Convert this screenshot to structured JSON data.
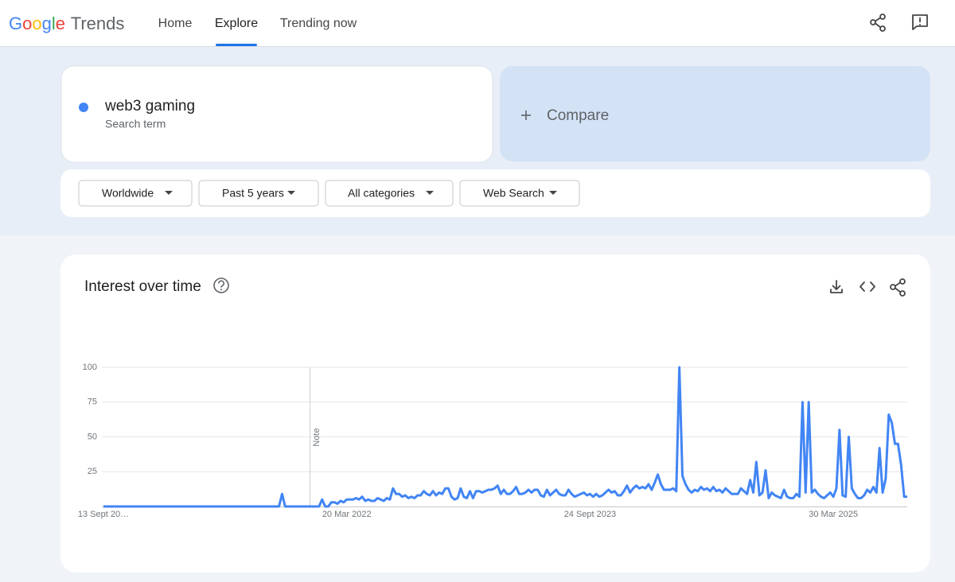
{
  "header": {
    "logo_letters": [
      "G",
      "o",
      "o",
      "g",
      "l",
      "e"
    ],
    "logo_product": "Trends",
    "nav": [
      "Home",
      "Explore",
      "Trending now"
    ]
  },
  "search": {
    "sublabel": "Search term",
    "compare": "Compare"
  },
  "filters": [
    "Worldwide",
    "Past 5 years",
    "All categories",
    "Web Search"
  ],
  "chart_data": {
    "type": "line",
    "title": "Interest over time",
    "annotation": "Note",
    "categories": [
      "13 Sept 20…",
      null,
      null,
      null,
      null,
      null,
      null,
      null,
      null,
      null,
      null,
      null,
      null,
      null,
      null,
      null,
      null,
      null,
      null,
      null,
      null,
      null,
      null,
      null,
      null,
      null,
      null,
      null,
      null,
      null,
      null,
      null,
      null,
      null,
      null,
      null,
      null,
      null,
      null,
      null,
      null,
      null,
      null,
      null,
      null,
      null,
      null,
      null,
      null,
      null,
      null,
      null,
      null,
      null,
      null,
      null,
      null,
      null,
      null,
      null,
      null,
      null,
      null,
      null,
      null,
      null,
      null,
      null,
      null,
      null,
      null,
      null,
      null,
      null,
      null,
      null,
      null,
      null,
      null,
      "20 Mar 2022",
      null,
      null,
      null,
      null,
      null,
      null,
      null,
      null,
      null,
      null,
      null,
      null,
      null,
      null,
      null,
      null,
      null,
      null,
      null,
      null,
      null,
      null,
      null,
      null,
      null,
      null,
      null,
      null,
      null,
      null,
      null,
      null,
      null,
      null,
      null,
      null,
      null,
      null,
      null,
      null,
      null,
      null,
      null,
      null,
      null,
      null,
      null,
      null,
      null,
      null,
      null,
      null,
      null,
      null,
      null,
      null,
      null,
      null,
      null,
      null,
      null,
      null,
      null,
      null,
      null,
      null,
      null,
      null,
      null,
      null,
      null,
      null,
      null,
      null,
      null,
      null,
      null,
      null,
      "24 Sept 2023",
      null,
      null,
      null,
      null,
      null,
      null,
      null,
      null,
      null,
      null,
      null,
      null,
      null,
      null,
      null,
      null,
      null,
      null,
      null,
      null,
      null,
      null,
      null,
      null,
      null,
      null,
      null,
      null,
      null,
      null,
      null,
      null,
      null,
      null,
      null,
      null,
      null,
      null,
      null,
      null,
      null,
      null,
      null,
      null,
      null,
      null,
      null,
      null,
      null,
      null,
      null,
      null,
      null,
      null,
      null,
      null,
      null,
      null,
      null,
      null,
      null,
      null,
      null,
      null,
      null,
      null,
      null,
      null,
      null,
      null,
      null,
      null,
      null,
      null,
      null,
      null,
      null,
      null,
      "30 Mar 2025",
      null,
      null,
      null,
      null,
      null,
      null,
      null,
      null,
      null,
      null,
      null,
      null,
      null,
      null,
      null,
      null,
      null,
      null,
      null,
      null,
      null,
      null,
      null,
      null
    ],
    "series": [
      {
        "name": "web3 gaming",
        "color": "#4285f4",
        "values": [
          0,
          0,
          0,
          0,
          0,
          0,
          0,
          0,
          0,
          0,
          0,
          0,
          0,
          0,
          0,
          0,
          0,
          0,
          0,
          0,
          0,
          0,
          0,
          0,
          0,
          0,
          0,
          0,
          0,
          0,
          0,
          0,
          0,
          0,
          0,
          0,
          0,
          0,
          0,
          0,
          0,
          0,
          0,
          0,
          0,
          0,
          0,
          0,
          0,
          0,
          0,
          0,
          0,
          0,
          0,
          0,
          0,
          0,
          9,
          0,
          0,
          0,
          0,
          0,
          0,
          0,
          0,
          0,
          0,
          0,
          0,
          5,
          0,
          0,
          3,
          3,
          2,
          4,
          3,
          5,
          5,
          5,
          6,
          5,
          7,
          4,
          5,
          4,
          4,
          6,
          5,
          4,
          6,
          5,
          13,
          9,
          9,
          7,
          8,
          6,
          7,
          6,
          8,
          8,
          11,
          9,
          8,
          11,
          8,
          10,
          9,
          13,
          13,
          7,
          5,
          6,
          13,
          7,
          6,
          11,
          6,
          11,
          11,
          10,
          11,
          12,
          12,
          13,
          15,
          9,
          12,
          9,
          9,
          11,
          14,
          9,
          9,
          10,
          12,
          10,
          12,
          12,
          8,
          7,
          12,
          8,
          10,
          12,
          9,
          8,
          8,
          12,
          9,
          7,
          8,
          9,
          10,
          8,
          9,
          7,
          9,
          7,
          8,
          10,
          12,
          10,
          11,
          8,
          8,
          11,
          15,
          10,
          13,
          15,
          13,
          14,
          13,
          16,
          12,
          17,
          23,
          16,
          12,
          12,
          12,
          13,
          11,
          100,
          22,
          16,
          12,
          10,
          12,
          11,
          14,
          12,
          13,
          11,
          14,
          11,
          12,
          10,
          13,
          11,
          9,
          9,
          9,
          13,
          11,
          9,
          19,
          10,
          32,
          8,
          10,
          26,
          6,
          10,
          8,
          7,
          6,
          12,
          7,
          6,
          6,
          9,
          7,
          75,
          10,
          75,
          10,
          12,
          9,
          7,
          6,
          8,
          10,
          7,
          13,
          55,
          8,
          7,
          50,
          13,
          9,
          6,
          6,
          8,
          12,
          10,
          14,
          10,
          42,
          10,
          20,
          66,
          60,
          45,
          45,
          30,
          7,
          7
        ]
      }
    ],
    "ylim": [
      0,
      100
    ],
    "yticks": [
      25,
      50,
      75,
      100
    ],
    "grid": true
  }
}
